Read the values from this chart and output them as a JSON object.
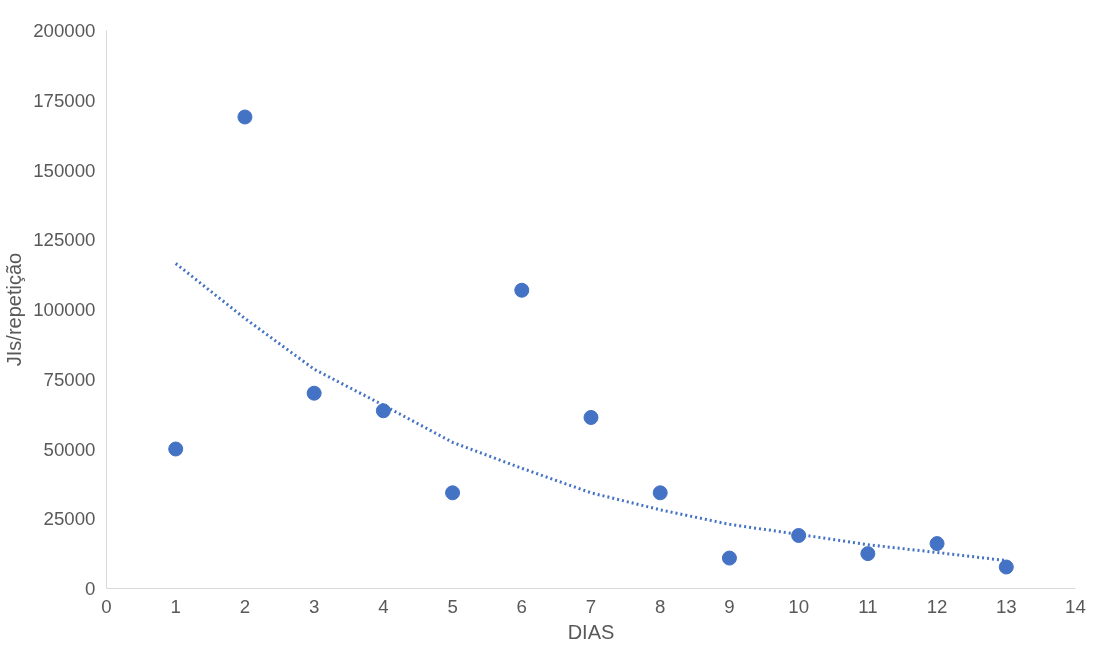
{
  "chart_data": {
    "type": "scatter",
    "xlabel": "DIAS",
    "ylabel": "JIs/repetição",
    "xlim": [
      0,
      14
    ],
    "xticks": [
      0,
      1,
      2,
      3,
      4,
      5,
      6,
      7,
      8,
      9,
      10,
      11,
      12,
      13,
      14
    ],
    "ylim": [
      0,
      200000
    ],
    "yticks": [
      0,
      25000,
      50000,
      75000,
      100000,
      125000,
      150000,
      175000,
      200000
    ],
    "grid": false,
    "series": [
      {
        "color": "#4472c4",
        "marker": "circle",
        "x": [
          1,
          2,
          3,
          4,
          5,
          6,
          7,
          8,
          9,
          10,
          11,
          12,
          13
        ],
        "values": [
          50000,
          169000,
          70000,
          63700,
          34300,
          106900,
          61300,
          34300,
          10900,
          19000,
          12500,
          16100,
          7700
        ]
      },
      {
        "type": "line",
        "color": "#4472c4",
        "marker": "none",
        "line_style": "dotted",
        "x": [
          1,
          2,
          3,
          4,
          5,
          6,
          7,
          8,
          9,
          10,
          11,
          12,
          13
        ],
        "values": [
          116500,
          96800,
          78600,
          65700,
          52400,
          43100,
          34300,
          28200,
          23000,
          19400,
          15700,
          12900,
          10000
        ]
      }
    ]
  }
}
